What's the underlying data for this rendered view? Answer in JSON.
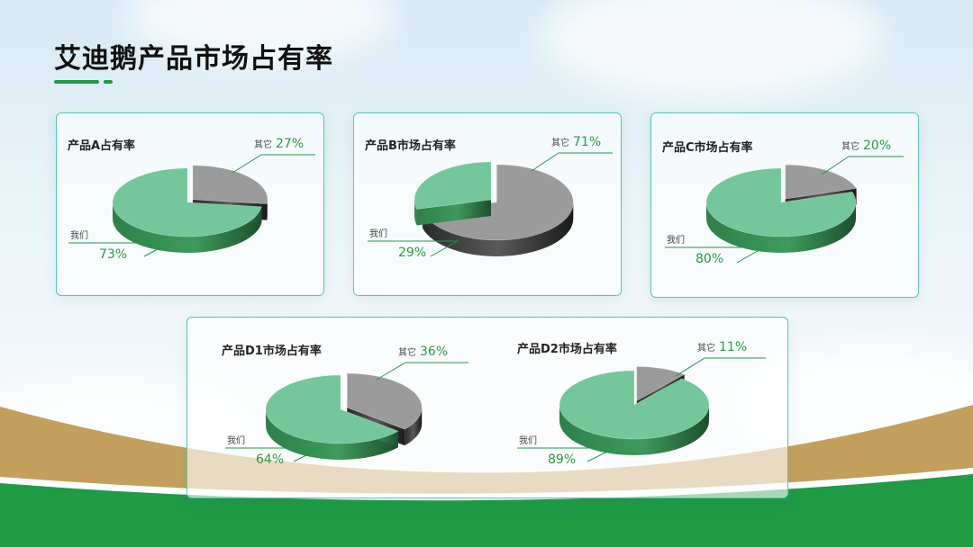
{
  "page": {
    "title": "艾迪鹅产品市场占有率"
  },
  "colors": {
    "green_slice": "#73c79b",
    "gray_slice": "#9b9b9b",
    "accent": "#1f9a45"
  },
  "chart_data": [
    {
      "type": "pie",
      "title": "产品A占有率",
      "slices": [
        {
          "name": "我们",
          "label": "73%",
          "value": 73
        },
        {
          "name": "其它",
          "label": "27%",
          "value": 27
        }
      ]
    },
    {
      "type": "pie",
      "title": "产品B市场占有率",
      "slices": [
        {
          "name": "我们",
          "label": "29%",
          "value": 29
        },
        {
          "name": "其它",
          "label": "71%",
          "value": 71
        }
      ]
    },
    {
      "type": "pie",
      "title": "产品C市场占有率",
      "slices": [
        {
          "name": "我们",
          "label": "80%",
          "value": 80
        },
        {
          "name": "其它",
          "label": "20%",
          "value": 20
        }
      ]
    },
    {
      "type": "pie",
      "title": "产品D1市场占有率",
      "slices": [
        {
          "name": "我们",
          "label": "64%",
          "value": 64
        },
        {
          "name": "其它",
          "label": "36%",
          "value": 36
        }
      ]
    },
    {
      "type": "pie",
      "title": "产品D2市场占有率",
      "slices": [
        {
          "name": "我们",
          "label": "89%",
          "value": 89
        },
        {
          "name": "其它",
          "label": "11%",
          "value": 11
        }
      ]
    }
  ]
}
